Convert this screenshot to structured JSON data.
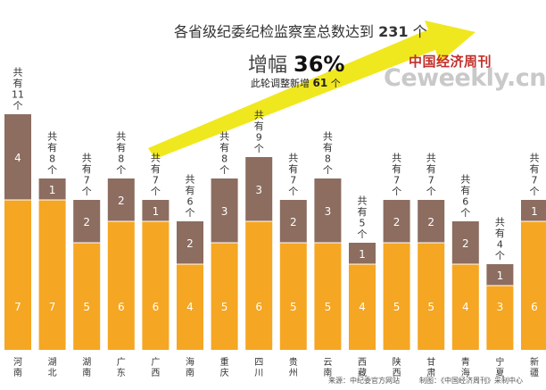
{
  "header": {
    "headline_prefix": "各省级纪委纪检监察室总数达到",
    "headline_number": "231",
    "headline_unit": "个",
    "growth_label": "增幅",
    "growth_value": "36%",
    "new_prefix": "此轮调整新增",
    "new_number": "61",
    "new_unit": "个"
  },
  "brand": {
    "cn": "中国经济周刊",
    "en": "Ceweekly.cn"
  },
  "footer": {
    "source": "来源：中纪委官方网站",
    "credit": "制图：《中国经济周刊》采制中心"
  },
  "colors": {
    "base": "#f5a623",
    "added": "#8c6d60",
    "arrow": "#f0e81e",
    "label_text": "#ffffff"
  },
  "chart_data": {
    "type": "bar",
    "stacked": true,
    "categories": [
      "河南",
      "湖北",
      "湖南",
      "广东",
      "广西",
      "海南",
      "重庆",
      "四川",
      "贵州",
      "云南",
      "西藏",
      "陕西",
      "甘肃",
      "青海",
      "宁夏",
      "新疆"
    ],
    "series": [
      {
        "values": [
          7,
          7,
          5,
          6,
          6,
          4,
          5,
          6,
          5,
          5,
          4,
          5,
          5,
          4,
          3,
          6
        ]
      },
      {
        "values": [
          4,
          1,
          2,
          2,
          1,
          2,
          3,
          3,
          2,
          3,
          1,
          2,
          2,
          2,
          1,
          1
        ]
      }
    ],
    "totals": [
      11,
      8,
      7,
      8,
      7,
      6,
      8,
      9,
      7,
      8,
      5,
      7,
      7,
      6,
      4,
      7
    ],
    "total_label": {
      "prefix": "共有",
      "unit": "个"
    },
    "ylim": [
      0,
      11.5
    ]
  }
}
